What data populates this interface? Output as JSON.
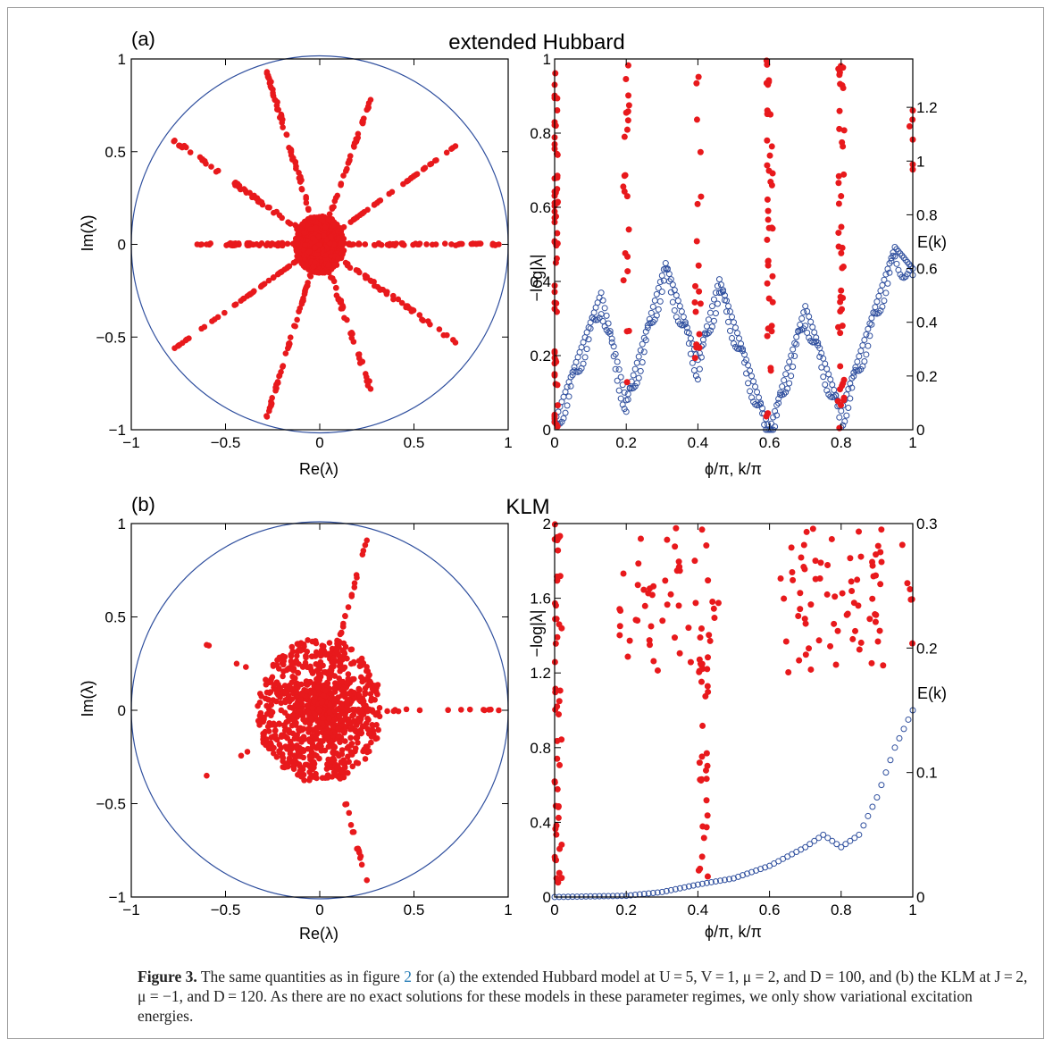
{
  "figure": {
    "panels": [
      {
        "label": "(a)",
        "title": "extended Hubbard",
        "left_plot": {
          "xlabel": "Re(λ)",
          "ylabel": "Im(λ)",
          "xticks": [
            "−1",
            "−0.5",
            "0",
            "0.5",
            "1"
          ],
          "yticks": [
            "−1",
            "−0.5",
            "0",
            "0.5",
            "1"
          ]
        },
        "right_plot": {
          "xlabel": "ϕ/π, k/π",
          "ylabel_left": "−log|λ|",
          "ylabel_right": "E(k)",
          "xticks": [
            "0",
            "0.2",
            "0.4",
            "0.6",
            "0.8",
            "1"
          ],
          "yticks_left": [
            "0",
            "0.2",
            "0.4",
            "0.6",
            "0.8",
            "1"
          ],
          "yticks_right": [
            "0",
            "0.2",
            "0.4",
            "0.6",
            "0.8",
            "1",
            "1.2"
          ]
        }
      },
      {
        "label": "(b)",
        "title": "KLM",
        "left_plot": {
          "xlabel": "Re(λ)",
          "ylabel": "Im(λ)",
          "xticks": [
            "−1",
            "−0.5",
            "0",
            "0.5",
            "1"
          ],
          "yticks": [
            "−1",
            "−0.5",
            "0",
            "0.5",
            "1"
          ]
        },
        "right_plot": {
          "xlabel": "ϕ/π, k/π",
          "ylabel_left": "−log|λ|",
          "ylabel_right": "E(k)",
          "xticks": [
            "0",
            "0.2",
            "0.4",
            "0.6",
            "0.8",
            "1"
          ],
          "yticks_left": [
            "0",
            "0.4",
            "0.8",
            "1.2",
            "1.6",
            "2"
          ],
          "yticks_right": [
            "0",
            "0.1",
            "0.2",
            "0.3"
          ]
        }
      }
    ]
  },
  "caption": {
    "label": "Figure 3.",
    "text_1": " The same quantities as in figure ",
    "ref": "2",
    "text_2": " for (a) the extended Hubbard model at U = 5, V = 1, μ = 2, and D = 100, and (b) the KLM at J = 2, μ = −1, and D = 120. As there are no exact solutions for these models in these parameter regimes, we only show variational excitation energies."
  },
  "colors": {
    "eigenvalue_points": "#e8191c",
    "circle_and_energy": "#2f4f9e",
    "axes": "#000000"
  },
  "chart_data": [
    {
      "panel": "(a) left",
      "type": "scatter",
      "xlabel": "Re(λ)",
      "ylabel": "Im(λ)",
      "xlim": [
        -1,
        1
      ],
      "ylim": [
        -1,
        1
      ],
      "unit_circle": true,
      "points_description_free": true,
      "rays": [
        {
          "end": [
            0.95,
            0.0
          ],
          "n": 40
        },
        {
          "end": [
            0.72,
            0.53
          ],
          "n": 30
        },
        {
          "end": [
            0.72,
            -0.53
          ],
          "n": 30
        },
        {
          "end": [
            0.27,
            0.78
          ],
          "n": 26
        },
        {
          "end": [
            0.27,
            -0.78
          ],
          "n": 26
        },
        {
          "end": [
            -0.28,
            0.93
          ],
          "n": 32
        },
        {
          "end": [
            -0.28,
            -0.93
          ],
          "n": 32
        },
        {
          "end": [
            -0.77,
            0.56
          ],
          "n": 34
        },
        {
          "end": [
            -0.77,
            -0.56
          ],
          "n": 34
        },
        {
          "end": [
            -0.65,
            0.0
          ],
          "n": 18
        }
      ],
      "clusters": [
        {
          "x": -0.46,
          "y": 0.0
        },
        {
          "x": -0.37,
          "y": 0.0
        },
        {
          "x": -0.21,
          "y": 0.0
        }
      ],
      "core_radius": 0.12
    },
    {
      "panel": "(a) right",
      "type": "scatter",
      "xlabel": "ϕ/π, k/π",
      "ylabel": "−log|λ|",
      "ylabel_right": "E(k)",
      "xlim": [
        0,
        1
      ],
      "ylim": [
        0,
        1
      ],
      "ylim_right": [
        0,
        1.38
      ],
      "series": [
        {
          "axis": "left",
          "marker": "filled",
          "columns": [
            {
              "x": 0.0,
              "ymin": 0.0,
              "ymax": 1.0,
              "n": 60
            },
            {
              "x": 0.2,
              "ymin": 0.12,
              "ymax": 1.0,
              "n": 22
            },
            {
              "x": 0.4,
              "ymin": 0.19,
              "ymax": 1.0,
              "n": 18
            },
            {
              "x": 0.6,
              "ymin": 0.0,
              "ymax": 1.0,
              "n": 40
            },
            {
              "x": 0.8,
              "ymin": 0.0,
              "ymax": 1.0,
              "n": 44
            },
            {
              "x": 1.0,
              "ymin": 0.7,
              "ymax": 1.0,
              "n": 6
            }
          ]
        },
        {
          "axis": "right",
          "marker": "open",
          "name": "",
          "x": [
            0.0,
            0.13,
            0.2,
            0.31,
            0.4,
            0.46,
            0.6,
            0.7,
            0.8,
            0.95,
            1.0
          ],
          "y": [
            0.03,
            0.51,
            0.11,
            0.62,
            0.26,
            0.56,
            0.0,
            0.46,
            0.07,
            0.68,
            0.6
          ]
        }
      ]
    },
    {
      "panel": "(b) left",
      "type": "scatter",
      "xlabel": "Re(λ)",
      "ylabel": "Im(λ)",
      "xlim": [
        -1,
        1
      ],
      "ylim": [
        -1,
        1
      ],
      "unit_circle": true,
      "rays": [
        {
          "end": [
            0.95,
            0.0
          ],
          "n": 14
        },
        {
          "end": [
            0.25,
            0.91
          ],
          "n": 18
        },
        {
          "end": [
            0.25,
            -0.91
          ],
          "n": 18
        },
        {
          "end": [
            -0.6,
            0.35
          ],
          "n": 4
        },
        {
          "end": [
            -0.6,
            -0.35
          ],
          "n": 4
        }
      ],
      "core_radius": 0.3
    },
    {
      "panel": "(b) right",
      "type": "scatter",
      "xlabel": "ϕ/π, k/π",
      "ylabel": "−log|λ|",
      "ylabel_right": "E(k)",
      "xlim": [
        0,
        1
      ],
      "ylim": [
        0,
        2
      ],
      "ylim_right": [
        0,
        0.3
      ],
      "series": [
        {
          "axis": "left",
          "marker": "filled",
          "name": "",
          "clouds": [
            {
              "x": [
                0.0,
                0.02
              ],
              "y": [
                0.0,
                2.0
              ],
              "n": 50
            },
            {
              "x": [
                0.18,
                0.46
              ],
              "y": [
                1.2,
                1.98
              ],
              "n": 55
            },
            {
              "x": [
                0.4,
                0.43
              ],
              "y": [
                0.02,
                1.3
              ],
              "n": 30
            },
            {
              "x": [
                0.62,
                0.92
              ],
              "y": [
                1.2,
                1.98
              ],
              "n": 70
            },
            {
              "x": [
                0.97,
                1.0
              ],
              "y": [
                1.3,
                1.95
              ],
              "n": 6
            }
          ]
        },
        {
          "axis": "right",
          "marker": "open",
          "name": "",
          "x": [
            0.0,
            0.2,
            0.3,
            0.4,
            0.5,
            0.6,
            0.7,
            0.75,
            0.8,
            0.85,
            0.9,
            0.95,
            1.0
          ],
          "y": [
            0.0,
            0.001,
            0.004,
            0.01,
            0.015,
            0.025,
            0.04,
            0.05,
            0.04,
            0.05,
            0.08,
            0.12,
            0.15
          ]
        }
      ]
    }
  ]
}
